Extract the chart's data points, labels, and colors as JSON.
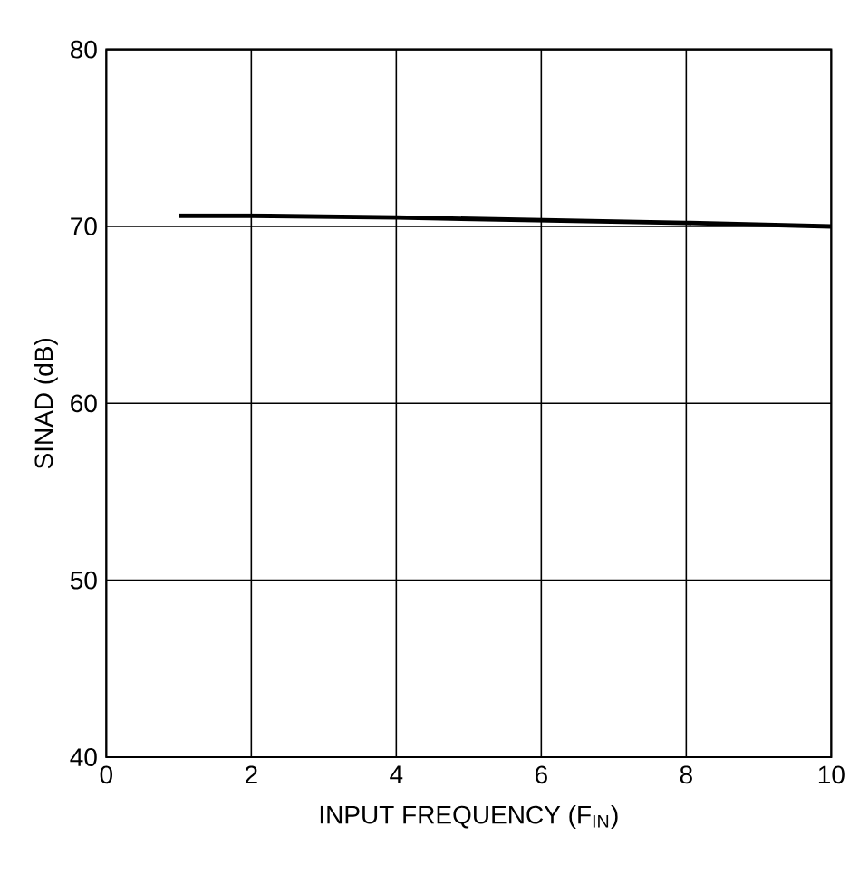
{
  "chart_data": {
    "type": "line",
    "xlabel": "INPUT FREQUENCY (F$_{IN}$)",
    "ylabel": "SINAD (dB)",
    "x": [
      1,
      2,
      4,
      6,
      8,
      10
    ],
    "series": [
      {
        "color": "#000000",
        "values": [
          70.6,
          70.6,
          70.5,
          70.35,
          70.2,
          70.0
        ]
      }
    ],
    "xlim": [
      0,
      10
    ],
    "ylim": [
      40,
      80
    ],
    "xticks": [
      0,
      2,
      4,
      6,
      8,
      10
    ],
    "yticks": [
      40,
      50,
      60,
      70,
      80
    ],
    "grid": true,
    "marker": "none",
    "line_style": "solid"
  }
}
